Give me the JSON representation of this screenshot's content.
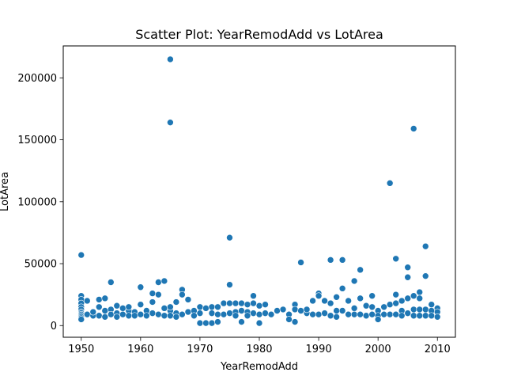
{
  "chart_data": {
    "type": "scatter",
    "title": "Scatter Plot: YearRemodAdd vs LotArea",
    "xlabel": "YearRemodAdd",
    "ylabel": "LotArea",
    "xlim": [
      1946.97,
      2013.03
    ],
    "ylim": [
      -9420,
      225805
    ],
    "xticks": [
      1950,
      1960,
      1970,
      1980,
      1990,
      2000,
      2010
    ],
    "yticks": [
      0,
      50000,
      100000,
      150000,
      200000
    ],
    "ytick_labels": [
      "0",
      "50000",
      "100000",
      "150000",
      "200000"
    ],
    "grid": false,
    "marker_color": "#1f77b4",
    "series": [
      {
        "x": [
          1950,
          1950,
          1950,
          1950,
          1950,
          1950,
          1950,
          1950,
          1950,
          1950,
          1950,
          1950,
          1950,
          1951,
          1951,
          1952,
          1952,
          1953,
          1953,
          1953,
          1954,
          1954,
          1954,
          1955,
          1955,
          1955,
          1956,
          1956,
          1956,
          1957,
          1957,
          1958,
          1958,
          1958,
          1959,
          1959,
          1960,
          1960,
          1960,
          1961,
          1961,
          1962,
          1962,
          1962,
          1963,
          1963,
          1963,
          1964,
          1964,
          1964,
          1965,
          1965,
          1965,
          1965,
          1965,
          1966,
          1966,
          1966,
          1967,
          1967,
          1967,
          1968,
          1968,
          1969,
          1969,
          1970,
          1970,
          1970,
          1971,
          1971,
          1972,
          1972,
          1972,
          1973,
          1973,
          1973,
          1974,
          1974,
          1975,
          1975,
          1975,
          1975,
          1976,
          1976,
          1976,
          1977,
          1977,
          1977,
          1978,
          1978,
          1978,
          1979,
          1979,
          1979,
          1980,
          1980,
          1980,
          1981,
          1981,
          1982,
          1983,
          1984,
          1985,
          1985,
          1986,
          1986,
          1986,
          1987,
          1987,
          1988,
          1988,
          1989,
          1989,
          1990,
          1990,
          1990,
          1991,
          1991,
          1992,
          1992,
          1992,
          1993,
          1993,
          1993,
          1994,
          1994,
          1994,
          1995,
          1995,
          1996,
          1996,
          1996,
          1997,
          1997,
          1997,
          1998,
          1998,
          1999,
          1999,
          1999,
          2000,
          2000,
          2000,
          2001,
          2001,
          2002,
          2002,
          2002,
          2003,
          2003,
          2003,
          2003,
          2004,
          2004,
          2004,
          2005,
          2005,
          2005,
          2005,
          2006,
          2006,
          2006,
          2006,
          2007,
          2007,
          2007,
          2007,
          2008,
          2008,
          2008,
          2008,
          2009,
          2009,
          2009,
          2010,
          2010,
          2010
        ],
        "y": [
          57000,
          24000,
          21000,
          18000,
          15000,
          13000,
          11000,
          10000,
          9000,
          8000,
          7000,
          6000,
          5000,
          20000,
          9000,
          8000,
          11000,
          21000,
          15000,
          8000,
          22000,
          12000,
          7000,
          35000,
          13000,
          9000,
          16000,
          10000,
          7000,
          14000,
          9000,
          12000,
          8000,
          15000,
          11000,
          8000,
          31000,
          17000,
          9000,
          12000,
          8000,
          26000,
          19000,
          10000,
          35000,
          25000,
          9000,
          36000,
          14000,
          8000,
          215000,
          164000,
          12000,
          8000,
          15000,
          19000,
          10000,
          7000,
          29000,
          25000,
          9000,
          21000,
          11000,
          12000,
          8000,
          15000,
          10000,
          2000,
          14000,
          2000,
          15000,
          10000,
          2000,
          15000,
          9000,
          3000,
          18000,
          9000,
          71000,
          33000,
          18000,
          10000,
          18000,
          11000,
          8000,
          18000,
          12000,
          3000,
          17000,
          11000,
          8000,
          24000,
          18000,
          10000,
          16000,
          9000,
          2000,
          17000,
          10000,
          9000,
          12000,
          13000,
          9000,
          5000,
          17000,
          13000,
          3000,
          51000,
          12000,
          10000,
          13000,
          20000,
          9000,
          26000,
          24000,
          9000,
          20000,
          10000,
          53000,
          18000,
          8000,
          23000,
          12000,
          7000,
          53000,
          30000,
          12000,
          20000,
          9000,
          36000,
          14000,
          9000,
          45000,
          22000,
          9000,
          16000,
          8000,
          24000,
          15000,
          9000,
          12000,
          8000,
          5000,
          15000,
          9000,
          115000,
          17000,
          9000,
          54000,
          25000,
          18000,
          9000,
          20000,
          12000,
          8000,
          47000,
          39000,
          22000,
          10000,
          159000,
          24000,
          13000,
          8000,
          27000,
          22000,
          13000,
          8000,
          64000,
          40000,
          13000,
          8000,
          17000,
          12000,
          8000,
          14000,
          11000,
          7000
        ]
      }
    ]
  }
}
